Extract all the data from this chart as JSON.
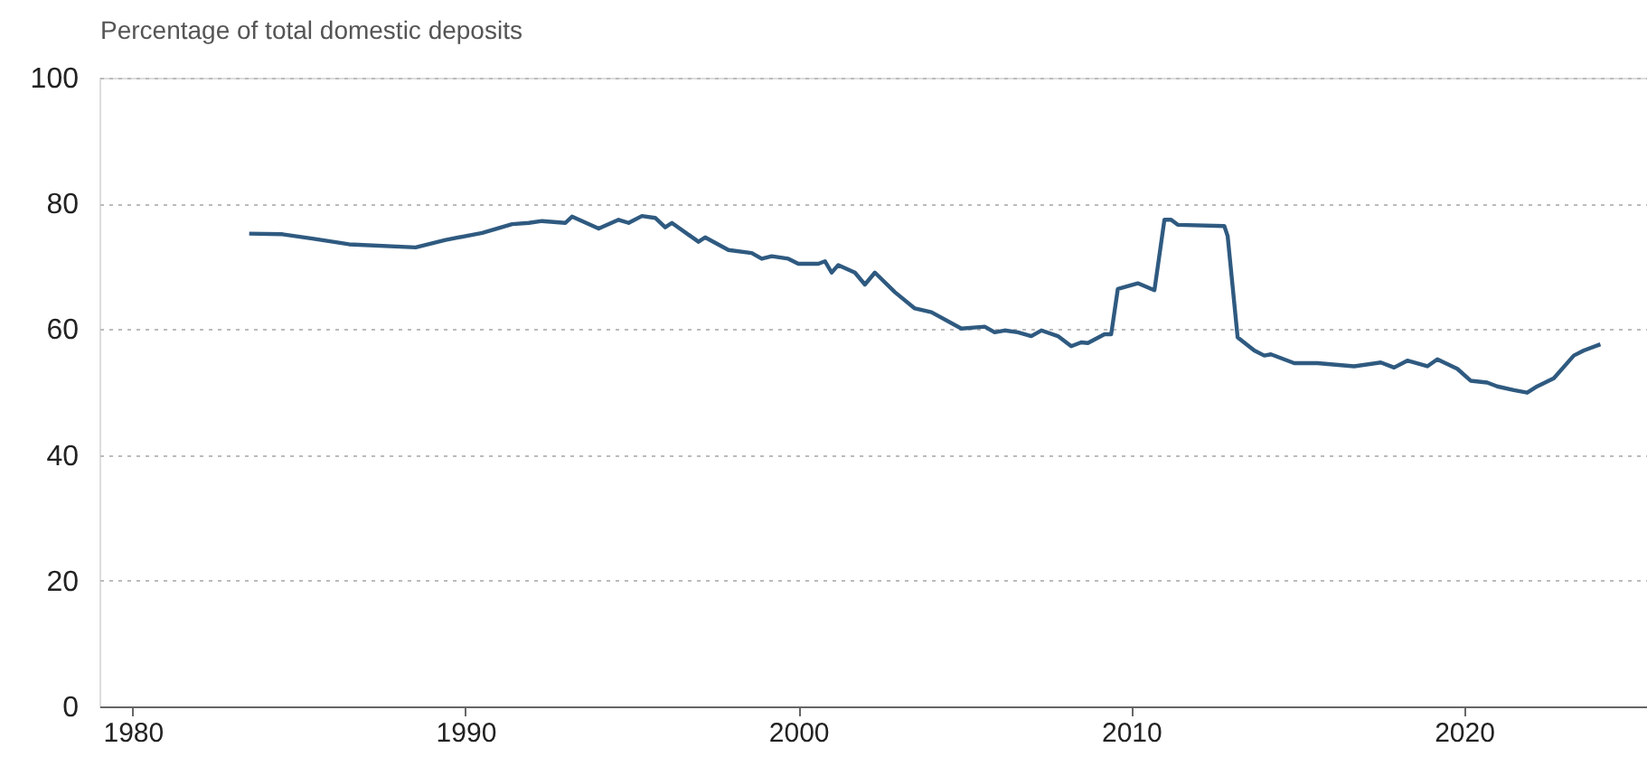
{
  "chart_data": {
    "type": "line",
    "ylabel": "Percentage of total domestic deposits",
    "xlim": [
      1979,
      2025.5
    ],
    "xticks": [
      1980,
      1990,
      2000,
      2010,
      2020
    ],
    "ylim": [
      0,
      100
    ],
    "yticks": [
      0,
      20,
      40,
      60,
      80,
      100
    ],
    "grid": "y",
    "line_style": "solid",
    "marker": "none",
    "series": [
      {
        "color": "#2f5a80",
        "x": [
          1983.5,
          1984.5,
          1985.4,
          1986.5,
          1988.5,
          1989.4,
          1990.5,
          1991.4,
          1991.9,
          1992.3,
          1993.0,
          1993.2,
          1994.0,
          1994.6,
          1994.9,
          1995.3,
          1995.7,
          1996.0,
          1996.2,
          1997.0,
          1997.2,
          1997.9,
          1998.6,
          1998.9,
          1999.2,
          1999.7,
          2000.0,
          2000.6,
          2000.8,
          2001.0,
          2001.2,
          2001.7,
          2002.0,
          2002.3,
          2002.9,
          2003.5,
          2004.0,
          2004.9,
          2005.6,
          2005.9,
          2006.2,
          2006.6,
          2007.0,
          2007.3,
          2007.8,
          2008.2,
          2008.5,
          2008.7,
          2009.2,
          2009.4,
          2009.6,
          2010.2,
          2010.7,
          2011.0,
          2011.2,
          2011.4,
          2012.8,
          2012.9,
          2013.2,
          2013.7,
          2014.0,
          2014.2,
          2014.9,
          2015.6,
          2016.7,
          2017.5,
          2017.9,
          2018.3,
          2018.9,
          2019.2,
          2019.8,
          2020.2,
          2020.7,
          2021.0,
          2021.5,
          2021.9,
          2022.2,
          2022.7,
          2023.3,
          2023.6,
          2024.1
        ],
        "values": [
          75.2,
          75.1,
          74.4,
          73.5,
          73.0,
          74.2,
          75.3,
          76.7,
          76.9,
          77.2,
          76.9,
          77.9,
          76.0,
          77.4,
          76.9,
          78.0,
          77.7,
          76.2,
          76.9,
          73.9,
          74.6,
          72.6,
          72.1,
          71.2,
          71.6,
          71.2,
          70.4,
          70.4,
          70.8,
          69.0,
          70.2,
          69.0,
          67.1,
          69.0,
          65.9,
          63.3,
          62.7,
          60.1,
          60.4,
          59.5,
          59.8,
          59.5,
          58.9,
          59.8,
          58.9,
          57.3,
          57.9,
          57.8,
          59.2,
          59.2,
          66.4,
          67.3,
          66.2,
          77.4,
          77.4,
          76.6,
          76.4,
          74.8,
          58.7,
          56.6,
          55.8,
          56.0,
          54.6,
          54.6,
          54.1,
          54.7,
          53.9,
          55.0,
          54.1,
          55.2,
          53.7,
          51.8,
          51.5,
          50.9,
          50.3,
          49.9,
          50.9,
          52.2,
          55.8,
          56.6,
          57.6
        ]
      }
    ]
  }
}
